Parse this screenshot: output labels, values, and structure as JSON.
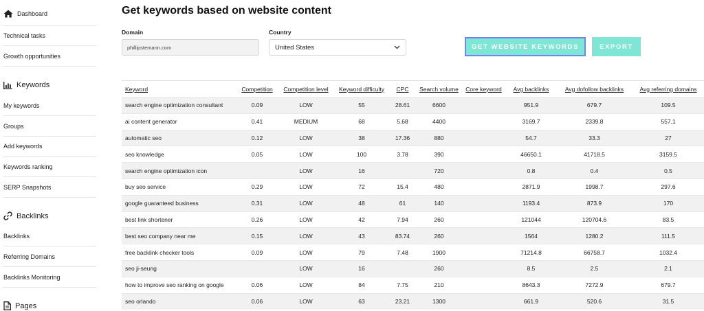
{
  "sidebar": {
    "dashboard": "Dashboard",
    "technical_tasks": "Technical tasks",
    "growth_opportunities": "Growth opportunities",
    "keywords_heading": "Keywords",
    "keywords_items": [
      "My keywords",
      "Groups",
      "Add keywords",
      "Keywords ranking",
      "SERP Snapshots"
    ],
    "backlinks_heading": "Backlinks",
    "backlinks_items": [
      "Backlinks",
      "Referring Domains",
      "Backlinks Monitoring"
    ],
    "pages_heading": "Pages"
  },
  "page_title": "Get keywords based on website content",
  "form": {
    "domain_label": "Domain",
    "domain_value": "phillipstemann.com",
    "country_label": "Country",
    "country_value": "United States"
  },
  "buttons": {
    "get_keywords": "GET WEBSITE KEYWORDS",
    "export": "EXPORT"
  },
  "colors": {
    "button_bg": "#7fe6d6",
    "button_focus_border": "#6f88e8"
  },
  "table": {
    "headers": [
      "Keyword",
      "Competition",
      "Competition level",
      "Keyword difficulty",
      "CPC",
      "Search volume",
      "Core keyword",
      "Avg backlinks",
      "Avg dofollow backlinks",
      "Avg referring domains"
    ],
    "rows": [
      [
        "search engine optimization consultant",
        "0.09",
        "LOW",
        "55",
        "28.61",
        "6600",
        "",
        "951.9",
        "679.7",
        "109.5"
      ],
      [
        "ai content generator",
        "0.41",
        "MEDIUM",
        "68",
        "5.68",
        "4400",
        "",
        "3169.7",
        "2339.8",
        "557.1"
      ],
      [
        "automatic seo",
        "0.12",
        "LOW",
        "38",
        "17.36",
        "880",
        "",
        "54.7",
        "33.3",
        "27"
      ],
      [
        "seo knowledge",
        "0.05",
        "LOW",
        "100",
        "3.78",
        "390",
        "",
        "46650.1",
        "41718.5",
        "3159.5"
      ],
      [
        "search engine optimization icon",
        "",
        "LOW",
        "16",
        "",
        "720",
        "",
        "0.8",
        "0.4",
        "0.5"
      ],
      [
        "buy seo service",
        "0.29",
        "LOW",
        "72",
        "15.4",
        "480",
        "",
        "2871.9",
        "1998.7",
        "297.6"
      ],
      [
        "google guaranteed business",
        "0.31",
        "LOW",
        "48",
        "61",
        "140",
        "",
        "1193.4",
        "873.9",
        "170"
      ],
      [
        "best link shortener",
        "0.26",
        "LOW",
        "42",
        "7.94",
        "260",
        "",
        "121044",
        "120704.6",
        "83.5"
      ],
      [
        "best seo company near me",
        "0.15",
        "LOW",
        "43",
        "83.74",
        "260",
        "",
        "1564",
        "1280.2",
        "111.5"
      ],
      [
        "free backlink checker tools",
        "0.09",
        "LOW",
        "79",
        "7.48",
        "1900",
        "",
        "71214.8",
        "66758.7",
        "1032.4"
      ],
      [
        "seo ji-seung",
        "",
        "LOW",
        "16",
        "",
        "260",
        "",
        "8.5",
        "2.5",
        "2.1"
      ],
      [
        "how to improve seo ranking on google",
        "0.06",
        "LOW",
        "84",
        "7.75",
        "210",
        "",
        "8643.3",
        "7272.9",
        "679.7"
      ],
      [
        "seo orlando",
        "0.06",
        "LOW",
        "63",
        "23.21",
        "1300",
        "",
        "661.9",
        "520.6",
        "31.5"
      ]
    ]
  }
}
